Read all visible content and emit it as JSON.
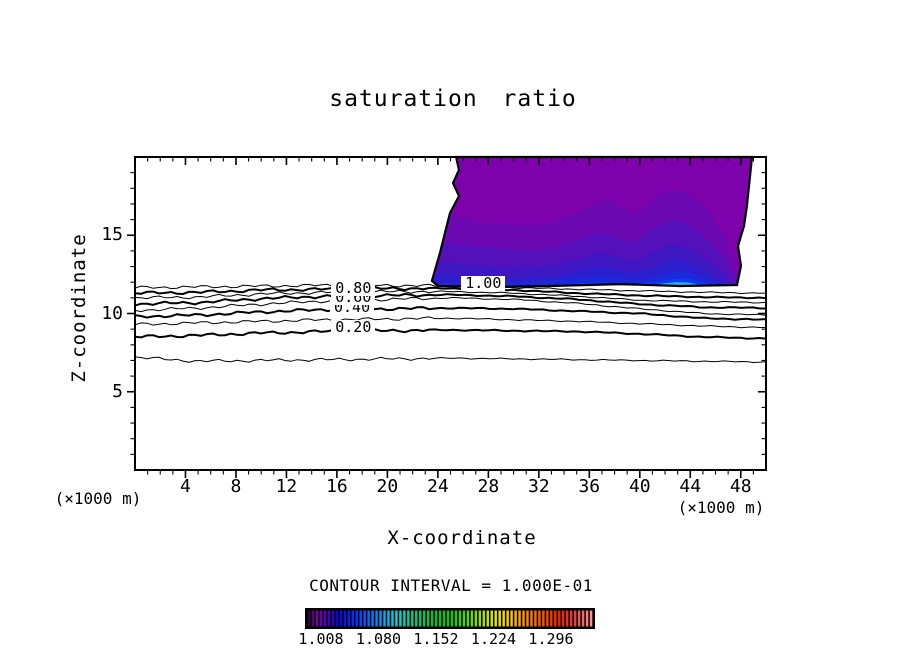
{
  "title": "saturation ratio",
  "x_axis": {
    "label": "X-coordinate",
    "unit_left": "(×1000 m)",
    "unit_right": "(×1000 m)"
  },
  "y_axis": {
    "label": "Z-coordinate"
  },
  "footer": {
    "contour_interval_text": "CONTOUR INTERVAL = 1.000E-01"
  },
  "chart_data": {
    "type": "contour",
    "title": "saturation ratio",
    "xlabel": "X-coordinate",
    "ylabel": "Z-coordinate",
    "x_units": "(×1000 m)",
    "y_units": "(×1000 m)",
    "xlim": [
      0,
      50
    ],
    "ylim": [
      0,
      20
    ],
    "x_major_ticks": [
      4,
      8,
      12,
      16,
      20,
      24,
      28,
      32,
      36,
      40,
      44,
      48
    ],
    "x_minor_step": 1,
    "y_major_ticks": [
      5,
      10,
      15
    ],
    "y_minor_step": 1,
    "grid": false,
    "contour_interval": "1.000E-01",
    "line_contours": [
      {
        "level": 0.1,
        "bold": false,
        "y_by_x": [
          [
            0,
            7.2
          ],
          [
            5,
            6.95
          ],
          [
            10,
            7.0
          ],
          [
            15,
            7.05
          ],
          [
            20,
            7.1
          ],
          [
            25,
            7.15
          ],
          [
            30,
            7.1
          ],
          [
            35,
            7.05
          ],
          [
            40,
            7.0
          ],
          [
            45,
            6.95
          ],
          [
            50,
            6.9
          ]
        ]
      },
      {
        "level": 0.2,
        "bold": true,
        "y_by_x": [
          [
            0,
            8.5
          ],
          [
            5,
            8.6
          ],
          [
            10,
            8.75
          ],
          [
            15,
            8.85
          ],
          [
            20,
            8.9
          ],
          [
            25,
            8.95
          ],
          [
            30,
            8.9
          ],
          [
            35,
            8.85
          ],
          [
            40,
            8.7
          ],
          [
            45,
            8.5
          ],
          [
            50,
            8.4
          ]
        ]
      },
      {
        "level": 0.3,
        "bold": false,
        "y_by_x": [
          [
            0,
            9.3
          ],
          [
            5,
            9.4
          ],
          [
            10,
            9.5
          ],
          [
            15,
            9.6
          ],
          [
            20,
            9.65
          ],
          [
            25,
            9.7
          ],
          [
            30,
            9.6
          ],
          [
            35,
            9.5
          ],
          [
            40,
            9.35
          ],
          [
            45,
            9.2
          ],
          [
            50,
            9.1
          ]
        ]
      },
      {
        "level": 0.4,
        "bold": true,
        "y_by_x": [
          [
            0,
            9.8
          ],
          [
            5,
            9.9
          ],
          [
            10,
            10.1
          ],
          [
            15,
            10.25
          ],
          [
            20,
            10.3
          ],
          [
            25,
            10.35
          ],
          [
            30,
            10.3
          ],
          [
            35,
            10.15
          ],
          [
            40,
            10.0
          ],
          [
            45,
            9.7
          ],
          [
            50,
            9.6
          ]
        ]
      },
      {
        "level": 0.5,
        "bold": false,
        "y_by_x": [
          [
            0,
            10.2
          ],
          [
            5,
            10.35
          ],
          [
            10,
            10.6
          ],
          [
            15,
            10.8
          ],
          [
            20,
            10.9
          ],
          [
            25,
            11.0
          ],
          [
            30,
            10.9
          ],
          [
            35,
            10.65
          ],
          [
            40,
            10.3
          ],
          [
            45,
            10.0
          ],
          [
            50,
            9.9
          ]
        ]
      },
      {
        "level": 0.6,
        "bold": true,
        "y_by_x": [
          [
            0,
            10.6
          ],
          [
            5,
            10.7
          ],
          [
            10,
            10.95
          ],
          [
            15,
            11.1
          ],
          [
            20,
            11.15
          ],
          [
            25,
            11.2
          ],
          [
            30,
            11.1
          ],
          [
            35,
            10.9
          ],
          [
            40,
            10.6
          ],
          [
            45,
            10.4
          ],
          [
            50,
            10.35
          ]
        ]
      },
      {
        "level": 0.7,
        "bold": false,
        "y_by_x": [
          [
            0,
            11.0
          ],
          [
            5,
            11.05
          ],
          [
            10,
            11.25
          ],
          [
            15,
            11.35
          ],
          [
            20,
            11.4
          ],
          [
            25,
            11.4
          ],
          [
            30,
            11.3
          ],
          [
            35,
            11.1
          ],
          [
            40,
            10.85
          ],
          [
            45,
            10.75
          ],
          [
            50,
            10.7
          ]
        ]
      },
      {
        "level": 0.8,
        "bold": true,
        "y_by_x": [
          [
            0,
            11.3
          ],
          [
            5,
            11.35
          ],
          [
            10,
            11.5
          ],
          [
            15,
            11.55
          ],
          [
            20,
            11.6
          ],
          [
            25,
            11.6
          ],
          [
            30,
            11.5
          ],
          [
            35,
            11.3
          ],
          [
            40,
            11.15
          ],
          [
            45,
            11.05
          ],
          [
            50,
            11.0
          ]
        ]
      },
      {
        "level": 0.9,
        "bold": false,
        "y_by_x": [
          [
            0,
            11.65
          ],
          [
            5,
            11.7
          ],
          [
            10,
            11.75
          ],
          [
            15,
            11.8
          ],
          [
            20,
            11.8
          ],
          [
            25,
            11.75
          ],
          [
            30,
            11.65
          ],
          [
            35,
            11.55
          ],
          [
            40,
            11.45
          ],
          [
            45,
            11.35
          ],
          [
            50,
            11.3
          ]
        ]
      }
    ],
    "contour_labels": [
      {
        "text": "0.20",
        "x": 17.3,
        "y": 9.07
      },
      {
        "text": "0.40",
        "x": 17.2,
        "y": 10.32
      },
      {
        "text": "0.60",
        "x": 17.3,
        "y": 11.0
      },
      {
        "text": "0.80",
        "x": 17.3,
        "y": 11.57
      },
      {
        "text": "1.00",
        "x": 27.6,
        "y": 11.9
      }
    ],
    "fill_region": {
      "level": 1.0,
      "base_color": "#7E02AC",
      "boundary": [
        [
          25.44,
          20.0
        ],
        [
          25.67,
          19.17
        ],
        [
          25.2,
          18.34
        ],
        [
          25.67,
          17.51
        ],
        [
          24.96,
          16.42
        ],
        [
          24.56,
          15.14
        ],
        [
          24.17,
          13.87
        ],
        [
          23.77,
          12.78
        ],
        [
          23.53,
          12.08
        ],
        [
          24.01,
          11.76
        ],
        [
          28.13,
          11.69
        ],
        [
          32.88,
          11.76
        ],
        [
          38.43,
          11.88
        ],
        [
          43.18,
          11.76
        ],
        [
          47.7,
          11.82
        ],
        [
          48.02,
          13.04
        ],
        [
          47.78,
          14.31
        ],
        [
          48.26,
          15.59
        ],
        [
          48.49,
          16.87
        ],
        [
          48.65,
          18.15
        ],
        [
          48.89,
          20.0
        ]
      ],
      "layers": [
        {
          "color": "#6C08B2",
          "top": [
            [
              24.6,
              16.8
            ],
            [
              25.5,
              16.2
            ],
            [
              27,
              15.9
            ],
            [
              29,
              15.7
            ],
            [
              31,
              15.6
            ],
            [
              33,
              15.8
            ],
            [
              35,
              16.4
            ],
            [
              36.6,
              17.1
            ],
            [
              37.6,
              17.3
            ],
            [
              38.6,
              16.8
            ],
            [
              39.5,
              16.3
            ],
            [
              40.5,
              16.8
            ],
            [
              41.6,
              17.6
            ],
            [
              42.6,
              17.9
            ],
            [
              43.8,
              17.7
            ],
            [
              45,
              16.9
            ],
            [
              46,
              15.9
            ],
            [
              46.8,
              14.8
            ],
            [
              47.4,
              13.5
            ],
            [
              47.7,
              12.3
            ]
          ]
        },
        {
          "color": "#5410BA",
          "top": [
            [
              24.2,
              14.6
            ],
            [
              26,
              14.4
            ],
            [
              28,
              14.2
            ],
            [
              30.5,
              14.05
            ],
            [
              33,
              14.1
            ],
            [
              35,
              14.6
            ],
            [
              36.8,
              15.2
            ],
            [
              38,
              14.9
            ],
            [
              39.3,
              14.5
            ],
            [
              40.8,
              15.2
            ],
            [
              42.2,
              15.9
            ],
            [
              43.5,
              15.8
            ],
            [
              44.8,
              15.1
            ],
            [
              46,
              14.2
            ],
            [
              46.9,
              13.3
            ],
            [
              47.5,
              12.2
            ]
          ]
        },
        {
          "color": "#3E17C2",
          "top": [
            [
              23.9,
              13.3
            ],
            [
              26,
              13.15
            ],
            [
              28.5,
              13.0
            ],
            [
              31,
              12.95
            ],
            [
              33.5,
              13.1
            ],
            [
              35.5,
              13.6
            ],
            [
              37,
              13.9
            ],
            [
              38.3,
              13.6
            ],
            [
              39.6,
              13.3
            ],
            [
              41,
              13.9
            ],
            [
              42.4,
              14.4
            ],
            [
              43.8,
              14.2
            ],
            [
              45.2,
              13.5
            ],
            [
              46.4,
              12.7
            ],
            [
              47.2,
              12.0
            ]
          ]
        },
        {
          "color": "#2C1ECC",
          "top": [
            [
              23.7,
              12.5
            ],
            [
              26,
              12.4
            ],
            [
              28.5,
              12.3
            ],
            [
              31,
              12.3
            ],
            [
              33.5,
              12.45
            ],
            [
              35.5,
              12.8
            ],
            [
              37,
              13.0
            ],
            [
              38.4,
              12.8
            ],
            [
              39.8,
              12.6
            ],
            [
              41.2,
              13.0
            ],
            [
              42.6,
              13.4
            ],
            [
              44,
              13.2
            ],
            [
              45.4,
              12.6
            ],
            [
              46.3,
              12.05
            ],
            [
              47.0,
              11.9
            ]
          ]
        },
        {
          "color": "#1C28DC",
          "top": [
            [
              24.3,
              11.95
            ],
            [
              27,
              12.0
            ],
            [
              30,
              12.0
            ],
            [
              33,
              12.1
            ],
            [
              35.5,
              12.3
            ],
            [
              37.2,
              12.4
            ],
            [
              38.8,
              12.25
            ],
            [
              40.2,
              12.15
            ],
            [
              41.6,
              12.45
            ],
            [
              43,
              12.7
            ],
            [
              44.4,
              12.5
            ],
            [
              45.6,
              12.1
            ],
            [
              46.4,
              11.9
            ]
          ]
        },
        {
          "color": "#0C3CF0",
          "top": [
            [
              33,
              11.8
            ],
            [
              35,
              11.95
            ],
            [
              37,
              12.0
            ],
            [
              39,
              11.9
            ],
            [
              41,
              12.0
            ],
            [
              42.5,
              12.2
            ],
            [
              43.8,
              12.25
            ],
            [
              44.9,
              12.0
            ],
            [
              45.6,
              11.85
            ]
          ]
        },
        {
          "color": "#30B0F4",
          "top": [
            [
              40.8,
              11.78
            ],
            [
              41.8,
              11.92
            ],
            [
              42.8,
              12.0
            ],
            [
              43.8,
              11.98
            ],
            [
              44.6,
              11.85
            ],
            [
              45.2,
              11.78
            ]
          ]
        }
      ]
    },
    "colorbar": {
      "tick_labels": [
        "1.008",
        "1.080",
        "1.152",
        "1.224",
        "1.296"
      ],
      "stripes": 72,
      "stops": [
        [
          0.0,
          "#3A0050"
        ],
        [
          0.03,
          "#7A00A8"
        ],
        [
          0.06,
          "#5000C0"
        ],
        [
          0.1,
          "#1400D8"
        ],
        [
          0.16,
          "#0030FF"
        ],
        [
          0.21,
          "#0068FF"
        ],
        [
          0.27,
          "#00AEF0"
        ],
        [
          0.31,
          "#00D8D8"
        ],
        [
          0.37,
          "#00C88C"
        ],
        [
          0.44,
          "#00C040"
        ],
        [
          0.5,
          "#10C800"
        ],
        [
          0.56,
          "#58D400"
        ],
        [
          0.62,
          "#A8E000"
        ],
        [
          0.67,
          "#E8E400"
        ],
        [
          0.72,
          "#FFC000"
        ],
        [
          0.78,
          "#FF8000"
        ],
        [
          0.84,
          "#FF4800"
        ],
        [
          0.89,
          "#F02000"
        ],
        [
          0.94,
          "#E04040"
        ],
        [
          1.0,
          "#FF9090"
        ]
      ]
    }
  }
}
